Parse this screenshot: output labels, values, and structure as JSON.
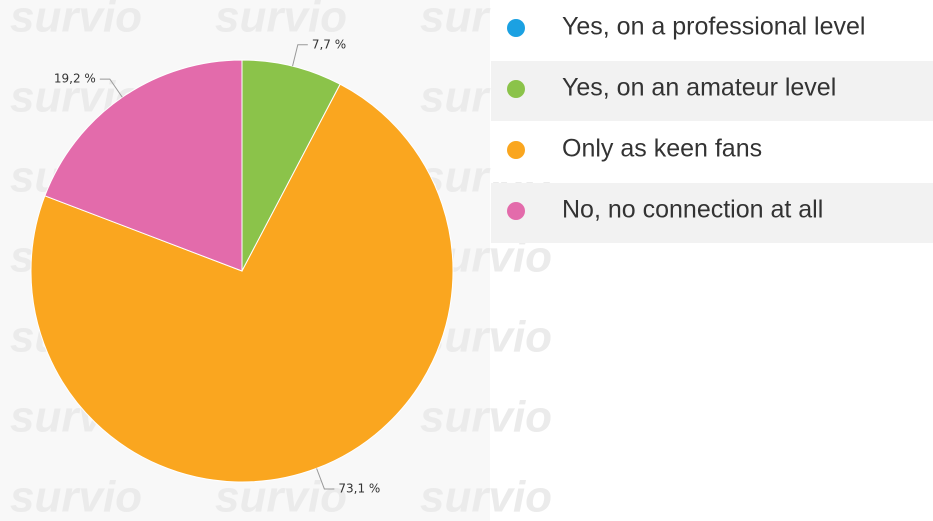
{
  "chart_data": {
    "type": "pie",
    "watermark": "survio",
    "categories": [
      "Yes, on a professional level",
      "Yes, on an amateur level",
      "Only as keen fans",
      "No, no connection at all"
    ],
    "values": [
      0,
      7.7,
      73.1,
      19.2
    ],
    "value_labels": [
      null,
      "7,7 %",
      "73,1 %",
      "19,2 %"
    ],
    "colors": [
      "#1ba1e2",
      "#8bc34a",
      "#faa61f",
      "#e36bab"
    ],
    "legend": "right"
  }
}
